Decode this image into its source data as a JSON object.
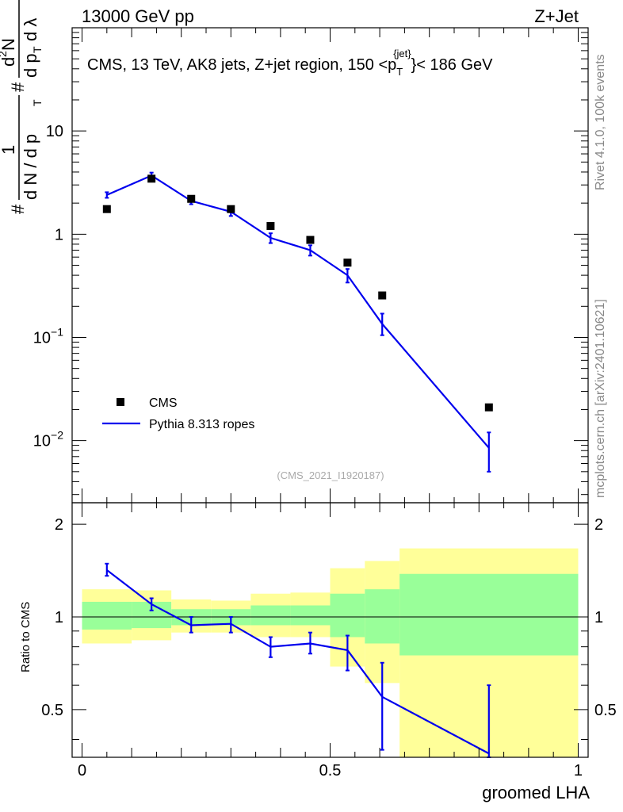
{
  "header": {
    "left": "13000 GeV pp",
    "right": "Z+Jet"
  },
  "side_labels": {
    "rivet": "Rivet 4.1.0,  100k events",
    "mcplots": "mcplots.cern.ch [arXiv:2401.10621]"
  },
  "analysis_id": "(CMS_2021_I1920187)",
  "colors": {
    "data": "#000000",
    "mc": "#0000ee",
    "band_outer": "#ffff99",
    "band_inner": "#99ff99",
    "side_text": "#888888"
  },
  "chart_data": [
    {
      "type": "scatter",
      "title": "CMS, 13 TeV, AK8 jets, Z+jet region, 150 <p_T^{jet}< 186 GeV",
      "title_parts": {
        "prefix": "CMS, 13 TeV, AK8 jets, Z+jet region, 150 <p",
        "sub": "T",
        "sup": "{jet}",
        "suffix": "}< 186 GeV"
      },
      "ylabel": "1/dN/dp_T  d²N/dp_T dλ",
      "ylabel_parts": {
        "num1": "1",
        "den1a": "d N / d p",
        "den1b": "T",
        "num2a": "d",
        "num2b": "2",
        "num2c": "N",
        "den2a": "d p",
        "den2b": "T",
        "den2c": "d λ",
        "hash": "#"
      },
      "xlim": [
        -0.02,
        1.02
      ],
      "ylim": [
        0.0025,
        100
      ],
      "yscale": "log",
      "y_ticks": [
        {
          "value": 0.01,
          "base": "10",
          "exp": "−2"
        },
        {
          "value": 0.1,
          "base": "10",
          "exp": "−1"
        },
        {
          "value": 1,
          "base": "1",
          "exp": ""
        },
        {
          "value": 10,
          "base": "10",
          "exp": ""
        }
      ],
      "legend": [
        {
          "name": "CMS",
          "style": "marker"
        },
        {
          "name": "Pythia 8.313 ropes",
          "style": "line"
        }
      ],
      "legend_position": "bottom-left",
      "series": [
        {
          "name": "CMS",
          "x": [
            0.05,
            0.14,
            0.22,
            0.3,
            0.38,
            0.46,
            0.535,
            0.605,
            0.82
          ],
          "y": [
            1.75,
            3.45,
            2.2,
            1.75,
            1.2,
            0.88,
            0.53,
            0.255,
            0.021
          ]
        },
        {
          "name": "Pythia 8.313 ropes",
          "x": [
            0.05,
            0.14,
            0.22,
            0.3,
            0.38,
            0.46,
            0.535,
            0.605,
            0.82
          ],
          "y": [
            2.4,
            3.7,
            2.1,
            1.65,
            0.92,
            0.7,
            0.4,
            0.135,
            0.0085
          ],
          "ylow": [
            2.25,
            3.45,
            1.95,
            1.5,
            0.82,
            0.62,
            0.34,
            0.105,
            0.005
          ],
          "yhigh": [
            2.55,
            3.95,
            2.25,
            1.8,
            1.02,
            0.78,
            0.46,
            0.17,
            0.012
          ]
        }
      ]
    },
    {
      "type": "line",
      "ylabel": "Ratio to CMS",
      "xlabel": "groomed LHA",
      "xlim": [
        -0.02,
        1.02
      ],
      "ylim": [
        0.35,
        2.35
      ],
      "yscale": "log",
      "x_ticks": [
        "0",
        "0.5",
        "1"
      ],
      "x_tick_values": [
        0,
        0.5,
        1
      ],
      "y_ticks": [
        "0.5",
        "1",
        "2"
      ],
      "y_tick_values": [
        0.5,
        1,
        2
      ],
      "bands": [
        {
          "x0": 0.0,
          "x1": 0.1,
          "outer": [
            0.82,
            1.23
          ],
          "inner": [
            0.91,
            1.12
          ]
        },
        {
          "x0": 0.1,
          "x1": 0.18,
          "outer": [
            0.84,
            1.22
          ],
          "inner": [
            0.92,
            1.12
          ]
        },
        {
          "x0": 0.18,
          "x1": 0.26,
          "outer": [
            0.89,
            1.14
          ],
          "inner": [
            0.94,
            1.06
          ]
        },
        {
          "x0": 0.26,
          "x1": 0.34,
          "outer": [
            0.89,
            1.13
          ],
          "inner": [
            0.94,
            1.06
          ]
        },
        {
          "x0": 0.34,
          "x1": 0.42,
          "outer": [
            0.86,
            1.19
          ],
          "inner": [
            0.94,
            1.09
          ]
        },
        {
          "x0": 0.42,
          "x1": 0.5,
          "outer": [
            0.86,
            1.2
          ],
          "inner": [
            0.94,
            1.09
          ]
        },
        {
          "x0": 0.5,
          "x1": 0.57,
          "outer": [
            0.69,
            1.44
          ],
          "inner": [
            0.86,
            1.19
          ]
        },
        {
          "x0": 0.57,
          "x1": 0.64,
          "outer": [
            0.61,
            1.52
          ],
          "inner": [
            0.82,
            1.23
          ]
        },
        {
          "x0": 0.64,
          "x1": 1.0,
          "outer": [
            0.35,
            1.67
          ],
          "inner": [
            0.75,
            1.38
          ]
        }
      ],
      "series": [
        {
          "name": "Pythia 8.313 ropes",
          "x": [
            0.05,
            0.14,
            0.22,
            0.3,
            0.38,
            0.46,
            0.535,
            0.605,
            0.82
          ],
          "y": [
            1.42,
            1.1,
            0.94,
            0.95,
            0.8,
            0.82,
            0.78,
            0.55,
            0.36
          ],
          "ylow": [
            1.36,
            1.05,
            0.89,
            0.89,
            0.74,
            0.76,
            0.67,
            0.37,
            0.35
          ],
          "yhigh": [
            1.49,
            1.15,
            1.0,
            1.0,
            0.86,
            0.89,
            0.87,
            0.71,
            0.6
          ]
        }
      ]
    }
  ]
}
